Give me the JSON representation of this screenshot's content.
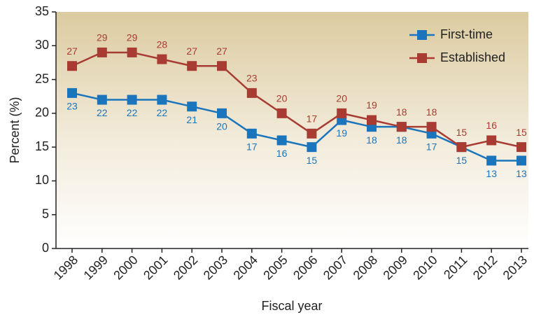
{
  "chart_data": {
    "type": "line",
    "xlabel": "Fiscal year",
    "ylabel": "Percent (%)",
    "categories": [
      "1998",
      "1999",
      "2000",
      "2001",
      "2002",
      "2003",
      "2004",
      "2005",
      "2006",
      "2007",
      "2008",
      "2009",
      "2010",
      "2011",
      "2012",
      "2013"
    ],
    "series": [
      {
        "name": "First-time",
        "color": "#1a75bc",
        "values": [
          23,
          22,
          22,
          22,
          21,
          20,
          17,
          16,
          15,
          19,
          18,
          18,
          17,
          15,
          13,
          13
        ]
      },
      {
        "name": "Established",
        "color": "#a83c32",
        "values": [
          27,
          29,
          29,
          28,
          27,
          27,
          23,
          20,
          17,
          20,
          19,
          18,
          18,
          15,
          16,
          15
        ]
      }
    ],
    "ylim": [
      0,
      35
    ],
    "yticks": [
      0,
      5,
      10,
      15,
      20,
      25,
      30,
      35
    ],
    "legend": "upper right",
    "grid": false
  }
}
